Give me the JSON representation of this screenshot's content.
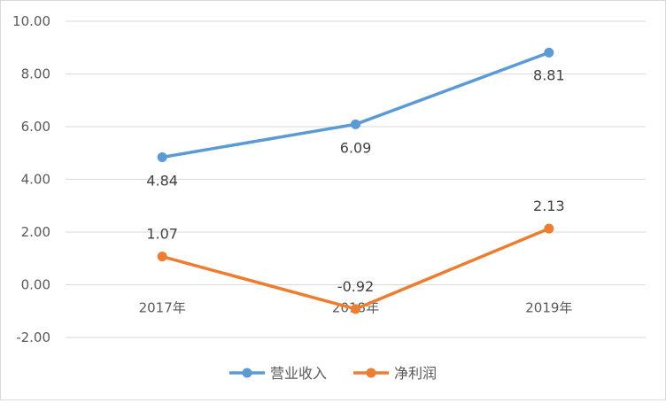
{
  "chart_data": {
    "type": "line",
    "categories": [
      "2017年",
      "2018年",
      "2019年"
    ],
    "series": [
      {
        "name": "营业收入",
        "values": [
          4.84,
          6.09,
          8.81
        ],
        "labels": [
          "4.84",
          "6.09",
          "8.81"
        ],
        "color": "#5b9bd5"
      },
      {
        "name": "净利润",
        "values": [
          1.07,
          -0.92,
          2.13
        ],
        "labels": [
          "1.07",
          "-0.92",
          "2.13"
        ],
        "color": "#ed7d31"
      }
    ],
    "y_ticks": [
      "10.00",
      "8.00",
      "6.00",
      "4.00",
      "2.00",
      "0.00",
      "-2.00"
    ],
    "ylim": [
      -2,
      10
    ],
    "grid": true,
    "legend_position": "bottom",
    "axis_color": "#d9d9d9",
    "text_color": "#595959",
    "label_color": "#404040"
  }
}
